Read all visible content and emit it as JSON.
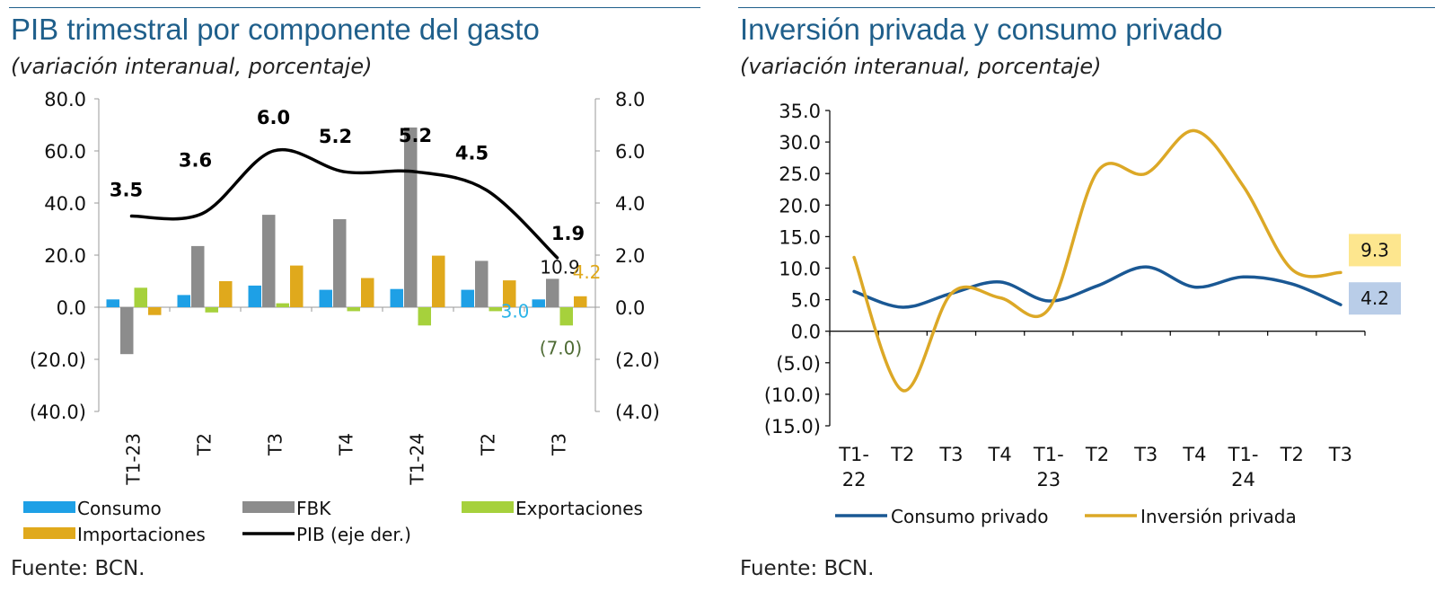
{
  "colors": {
    "title": "#1f5f8b",
    "consumo": "#1ea0e6",
    "fbk": "#8c8c8c",
    "exportaciones": "#a6d13c",
    "importaciones": "#e0a91c",
    "pib": "#000000",
    "consumo_privado": "#1a5894",
    "inversion_privada": "#dca826",
    "label_consumo": "#2bb4e8",
    "label_importaciones": "#e0a91c",
    "label_exportaciones": "#4e6b34",
    "callout_yellow": "#fde68e",
    "callout_blue": "#b9cde8"
  },
  "panel1": {
    "title": "PIB trimestral por componente del gasto",
    "subtitle": "(variación interanual, porcentaje)",
    "source": "Fuente: BCN."
  },
  "panel2": {
    "title": "Inversión privada y consumo privado",
    "subtitle": "(variación interanual, porcentaje)",
    "source": "Fuente: BCN."
  },
  "chart_data": [
    {
      "type": "bar",
      "categories": [
        "T1-23",
        "T2",
        "T3",
        "T4",
        "T1-24",
        "T2",
        "T3"
      ],
      "ylim": [
        -40,
        80
      ],
      "y_ticks": [
        80,
        60,
        40,
        20,
        0,
        -20,
        -40
      ],
      "y_tick_labels": [
        "80.0",
        "60.0",
        "40.0",
        "20.0",
        "0.0",
        "(20.0)",
        "(40.0)"
      ],
      "y2lim": [
        -4,
        8
      ],
      "y2_ticks": [
        8,
        6,
        4,
        2,
        0,
        -2,
        -4
      ],
      "y2_tick_labels": [
        "8.0",
        "6.0",
        "4.0",
        "2.0",
        "0.0",
        "(2.0)",
        "(4.0)"
      ],
      "series": [
        {
          "name": "Consumo",
          "values": [
            3.0,
            4.7,
            8.3,
            6.7,
            7.0,
            6.7,
            3.0
          ]
        },
        {
          "name": "FBK",
          "values": [
            -18.0,
            23.5,
            35.5,
            33.8,
            69.0,
            17.8,
            10.9
          ]
        },
        {
          "name": "Exportaciones",
          "values": [
            7.5,
            -2.0,
            1.5,
            -1.5,
            -7.0,
            -1.5,
            -7.0
          ]
        },
        {
          "name": "Importaciones",
          "values": [
            -3.0,
            10.0,
            16.0,
            11.2,
            19.8,
            10.3,
            4.2
          ]
        }
      ],
      "line": {
        "name": "PIB (eje der.)",
        "values": [
          3.5,
          3.6,
          6.0,
          5.2,
          5.2,
          4.5,
          1.9
        ],
        "axis": "right",
        "labels": [
          "3.5",
          "3.6",
          "6.0",
          "5.2",
          "5.2",
          "4.5",
          "1.9"
        ]
      },
      "annotations": [
        {
          "text": "3.0",
          "series": "Consumo",
          "category_index": 6
        },
        {
          "text": "10.9",
          "series": "FBK",
          "category_index": 6
        },
        {
          "text": "4.2",
          "series": "Importaciones",
          "category_index": 6
        },
        {
          "text": "(7.0)",
          "series": "Exportaciones",
          "category_index": 6
        }
      ],
      "legend": {
        "placement": "bottom",
        "entries": [
          "Consumo",
          "FBK",
          "Exportaciones",
          "Importaciones",
          "PIB (eje der.)"
        ]
      }
    },
    {
      "type": "line",
      "categories": [
        "T1-\n22",
        "T2",
        "T3",
        "T4",
        "T1-\n23",
        "T2",
        "T3",
        "T4",
        "T1-\n24",
        "T2",
        "T3"
      ],
      "x_tick_lines": [
        [
          "T1-",
          "22"
        ],
        [
          "T2"
        ],
        [
          "T3"
        ],
        [
          "T4"
        ],
        [
          "T1-",
          "23"
        ],
        [
          "T2"
        ],
        [
          "T3"
        ],
        [
          "T4"
        ],
        [
          "T1-",
          "24"
        ],
        [
          "T2"
        ],
        [
          "T3"
        ]
      ],
      "ylim": [
        -15,
        35
      ],
      "y_ticks": [
        35,
        30,
        25,
        20,
        15,
        10,
        5,
        0,
        -5,
        -10,
        -15
      ],
      "y_tick_labels": [
        "35.0",
        "30.0",
        "25.0",
        "20.0",
        "15.0",
        "10.0",
        "5.0",
        "0.0",
        "(5.0)",
        "(10.0)",
        "(15.0)"
      ],
      "series": [
        {
          "name": "Consumo privado",
          "values": [
            6.3,
            3.8,
            6.0,
            7.8,
            4.8,
            7.2,
            10.2,
            7.0,
            8.6,
            7.5,
            4.2
          ]
        },
        {
          "name": "Inversión privada",
          "values": [
            11.7,
            -9.4,
            6.0,
            5.3,
            3.5,
            25.3,
            25.0,
            31.8,
            23.0,
            9.8,
            9.3
          ]
        }
      ],
      "callouts": [
        {
          "text": "9.3",
          "series": "Inversión privada"
        },
        {
          "text": "4.2",
          "series": "Consumo privado"
        }
      ],
      "legend": {
        "placement": "bottom",
        "entries": [
          "Consumo privado",
          "Inversión privada"
        ]
      }
    }
  ]
}
